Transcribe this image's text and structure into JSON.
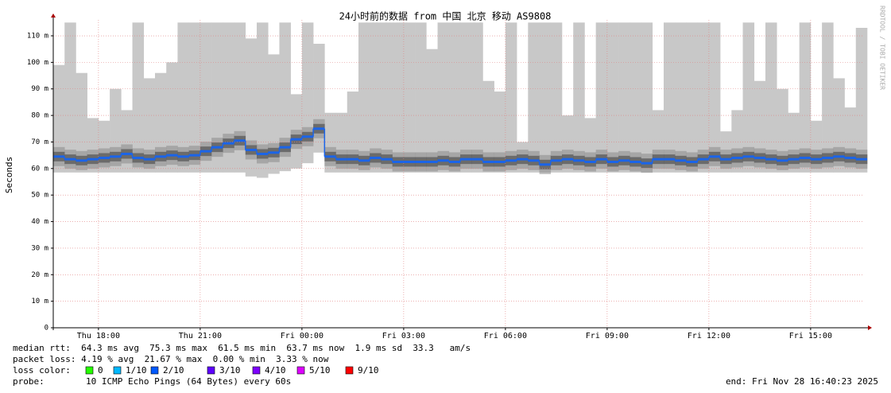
{
  "chart_data": {
    "type": "smokeping",
    "title": "24小时前的数据 from 中国 北京 移动 AS9808",
    "y_label": "Seconds",
    "watermark": "RRDTOOL / TOBI OETIKER",
    "categories": [
      null,
      null,
      null,
      null,
      "Thu 18:00",
      null,
      null,
      null,
      null,
      null,
      null,
      null,
      null,
      "Thu 21:00",
      null,
      null,
      null,
      null,
      null,
      null,
      null,
      null,
      "Fri 00:00",
      null,
      null,
      null,
      null,
      null,
      null,
      null,
      null,
      "Fri 03:00",
      null,
      null,
      null,
      null,
      null,
      null,
      null,
      null,
      "Fri 06:00",
      null,
      null,
      null,
      null,
      null,
      null,
      null,
      null,
      "Fri 09:00",
      null,
      null,
      null,
      null,
      null,
      null,
      null,
      null,
      "Fri 12:00",
      null,
      null,
      null,
      null,
      null,
      null,
      null,
      null,
      "Fri 15:00",
      null,
      null,
      null,
      null
    ],
    "values": [
      0.0645,
      0.0635,
      0.063,
      0.0635,
      0.064,
      0.0645,
      0.0655,
      0.064,
      0.0635,
      0.0645,
      0.065,
      0.0645,
      0.065,
      0.0665,
      0.068,
      0.0695,
      0.0705,
      0.067,
      0.0655,
      0.066,
      0.068,
      0.071,
      0.072,
      0.075,
      0.0645,
      0.0635,
      0.0635,
      0.063,
      0.064,
      0.0635,
      0.0625,
      0.0625,
      0.0625,
      0.0625,
      0.063,
      0.0625,
      0.0635,
      0.0635,
      0.0625,
      0.0625,
      0.063,
      0.0635,
      0.063,
      0.0615,
      0.063,
      0.0635,
      0.063,
      0.0625,
      0.0635,
      0.0625,
      0.063,
      0.0625,
      0.062,
      0.0635,
      0.0635,
      0.063,
      0.0625,
      0.0635,
      0.0645,
      0.0635,
      0.064,
      0.0645,
      0.064,
      0.0635,
      0.063,
      0.0635,
      0.064,
      0.0635,
      0.064,
      0.0645,
      0.064,
      0.0635
    ],
    "color": "#1b64e8",
    "smoke_max": [
      0.099,
      0.115,
      0.096,
      0.079,
      0.078,
      0.09,
      0.082,
      0.115,
      0.094,
      0.096,
      0.1,
      0.115,
      0.115,
      0.115,
      0.115,
      0.115,
      0.115,
      0.109,
      0.115,
      0.103,
      0.115,
      0.088,
      0.115,
      0.107,
      0.081,
      0.081,
      0.089,
      0.115,
      0.115,
      0.115,
      0.115,
      0.115,
      0.115,
      0.105,
      0.115,
      0.115,
      0.115,
      0.115,
      0.093,
      0.089,
      0.115,
      0.07,
      0.115,
      0.115,
      0.115,
      0.08,
      0.115,
      0.079,
      0.115,
      0.115,
      0.115,
      0.115,
      0.115,
      0.082,
      0.115,
      0.115,
      0.115,
      0.115,
      0.115,
      0.074,
      0.082,
      0.115,
      0.093,
      0.115,
      0.09,
      0.081,
      0.115,
      0.078,
      0.115,
      0.094,
      0.083,
      0.113
    ],
    "smoke_min": [
      0.0585,
      0.0585,
      0.0585,
      0.0585,
      0.0585,
      0.0585,
      0.0585,
      0.0585,
      0.0585,
      0.0585,
      0.0585,
      0.0585,
      0.0585,
      0.0585,
      0.0585,
      0.0585,
      0.0585,
      0.057,
      0.0565,
      0.058,
      0.059,
      0.06,
      0.062,
      0.066,
      0.0585,
      0.0585,
      0.0585,
      0.0585,
      0.0585,
      0.0585,
      0.0585,
      0.0585,
      0.0585,
      0.0585,
      0.0585,
      0.0585,
      0.0585,
      0.0585,
      0.0585,
      0.0585,
      0.0585,
      0.0585,
      0.0585,
      0.0585,
      0.0585,
      0.0585,
      0.0585,
      0.0585,
      0.0585,
      0.0585,
      0.0585,
      0.0585,
      0.0585,
      0.0585,
      0.0585,
      0.0585,
      0.0585,
      0.0585,
      0.0585,
      0.0585,
      0.0585,
      0.0585,
      0.0585,
      0.0585,
      0.0585,
      0.0585,
      0.0585,
      0.0585,
      0.0585,
      0.0585,
      0.0585,
      0.0585
    ],
    "smoke_color": "#c8c8c8",
    "ylim": [
      0,
      0.116
    ],
    "yticks": [
      0,
      {
        "value": 0.01,
        "label": "10 m"
      },
      {
        "value": 0.02,
        "label": "20 m"
      },
      {
        "value": 0.03,
        "label": "30 m"
      },
      {
        "value": 0.04,
        "label": "40 m"
      },
      {
        "value": 0.05,
        "label": "50 m"
      },
      {
        "value": 0.06,
        "label": "60 m"
      },
      {
        "value": 0.07,
        "label": "70 m"
      },
      {
        "value": 0.08,
        "label": "80 m"
      },
      {
        "value": 0.09,
        "label": "90 m"
      },
      {
        "value": 0.1,
        "label": "100 m"
      },
      {
        "value": 0.11,
        "label": "110 m"
      }
    ],
    "grid": true,
    "stats": [
      "median rtt:  64.3 ms avg  75.3 ms max  61.5 ms min  63.7 ms now  1.9 ms sd  33.3   am/s",
      "packet loss: 4.19 % avg  21.67 % max  0.00 % min  3.33 % now"
    ],
    "loss_label": "loss color:",
    "loss_colors": [
      {
        "label": "0",
        "color": "#26ff00"
      },
      {
        "label": "1/10",
        "color": "#00b8ff"
      },
      {
        "label": "2/10",
        "color": "#0059ff"
      },
      {
        "label": "3/10",
        "color": "#5e00ff"
      },
      {
        "label": "4/10",
        "color": "#7e00ff"
      },
      {
        "label": "5/10",
        "color": "#dd00ff"
      },
      {
        "label": "9/10",
        "color": "#ff0000"
      }
    ],
    "probe_label": "probe:",
    "probe": "10 ICMP Echo Pings (64 Bytes) every 60s",
    "end": "end: Fri Nov 28 16:40:23 2025"
  }
}
